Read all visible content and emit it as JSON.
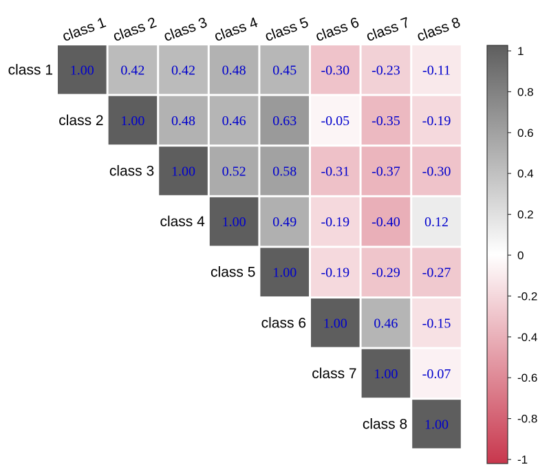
{
  "chart_data": {
    "type": "heatmap",
    "subtype": "upper-triangular correlation matrix",
    "rows": [
      "class 1",
      "class 2",
      "class 3",
      "class 4",
      "class 5",
      "class 6",
      "class 7",
      "class 8"
    ],
    "columns": [
      "class 1",
      "class 2",
      "class 3",
      "class 4",
      "class 5",
      "class 6",
      "class 7",
      "class 8"
    ],
    "values": [
      [
        1.0,
        0.42,
        0.42,
        0.48,
        0.45,
        -0.3,
        -0.23,
        -0.11
      ],
      [
        null,
        1.0,
        0.48,
        0.46,
        0.63,
        -0.05,
        -0.35,
        -0.19
      ],
      [
        null,
        null,
        1.0,
        0.52,
        0.58,
        -0.31,
        -0.37,
        -0.3
      ],
      [
        null,
        null,
        null,
        1.0,
        0.49,
        -0.19,
        -0.4,
        0.12
      ],
      [
        null,
        null,
        null,
        null,
        1.0,
        -0.19,
        -0.29,
        -0.27
      ],
      [
        null,
        null,
        null,
        null,
        null,
        1.0,
        0.46,
        -0.15
      ],
      [
        null,
        null,
        null,
        null,
        null,
        null,
        1.0,
        -0.07
      ],
      [
        null,
        null,
        null,
        null,
        null,
        null,
        null,
        1.0
      ]
    ],
    "value_format": "2 decimals",
    "colorbar": {
      "range": [
        -1,
        1
      ],
      "ticks": [
        "1",
        "0.8",
        "0.6",
        "0.4",
        "0.2",
        "0",
        "-0.2",
        "-0.4",
        "-0.6",
        "-0.8",
        "-1"
      ],
      "colors": {
        "max": "#5e5e5e",
        "mid": "#ffffff",
        "min": "#c8374d"
      }
    },
    "cell_text_color": "#0000cc",
    "title": "",
    "xlabel": "",
    "ylabel": ""
  }
}
